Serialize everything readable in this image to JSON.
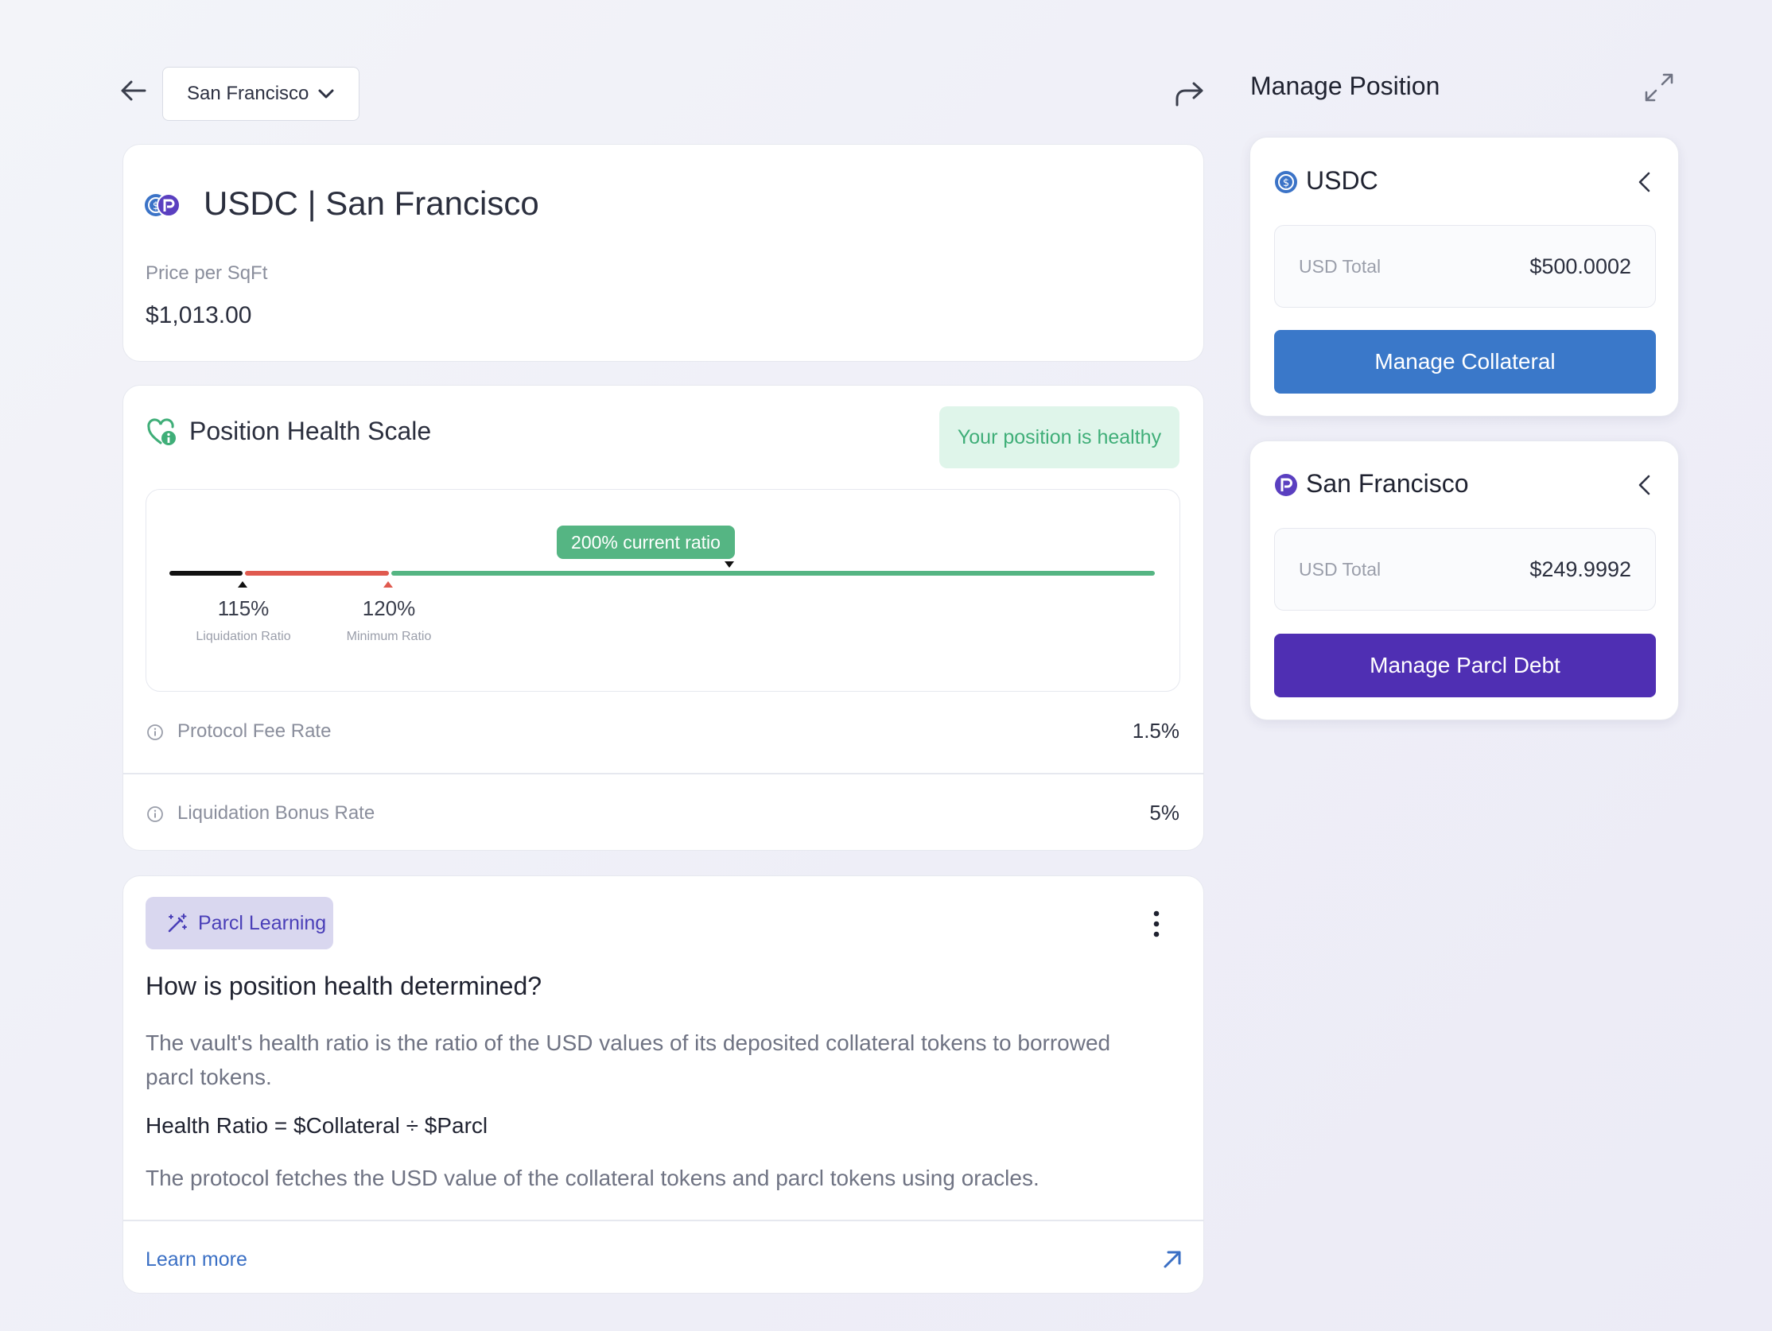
{
  "header": {
    "city_select": {
      "value": "San Francisco"
    }
  },
  "market": {
    "title": "USDC | San Francisco",
    "price_label": "Price per SqFt",
    "price_value": "$1,013.00"
  },
  "health": {
    "title": "Position Health Scale",
    "status_badge": "Your position is healthy",
    "current_label": "200% current ratio",
    "liquidation": {
      "value": "115%",
      "label": "Liquidation Ratio"
    },
    "minimum": {
      "value": "120%",
      "label": "Minimum Ratio"
    },
    "fees": [
      {
        "label": "Protocol Fee Rate",
        "value": "1.5%"
      },
      {
        "label": "Liquidation Bonus Rate",
        "value": "5%"
      }
    ],
    "colors": {
      "liquidation": "#111111",
      "danger": "#e05a4f",
      "healthy": "#55b583"
    }
  },
  "learning": {
    "badge": "Parcl Learning",
    "question": "How is position health determined?",
    "paragraph1": "The vault's health ratio is the ratio of the USD values of its deposited collateral tokens to borrowed parcl tokens.",
    "formula": "Health Ratio = $Collateral ÷ $Parcl",
    "paragraph2": "The protocol fetches the USD value of the collateral tokens and parcl tokens using oracles.",
    "link": "Learn more"
  },
  "manage": {
    "title": "Manage Position",
    "collateral": {
      "name": "USDC",
      "total_label": "USD Total",
      "total_value": "$500.0002",
      "button": "Manage Collateral",
      "button_color": "#3a78c9"
    },
    "debt": {
      "name": "San Francisco",
      "total_label": "USD Total",
      "total_value": "$249.9992",
      "button": "Manage Parcl Debt",
      "button_color": "#4f2fb3"
    }
  },
  "icons": {
    "back": "arrow-left-icon",
    "share": "share-arrow-icon",
    "expand": "expand-icon",
    "usdc": "usdc-coin-icon",
    "parcl": "parcl-logo-icon",
    "health": "heart-info-icon",
    "info": "info-circle-icon",
    "wand": "magic-wand-icon",
    "more": "kebab-menu-icon",
    "external": "arrow-up-right-icon"
  }
}
